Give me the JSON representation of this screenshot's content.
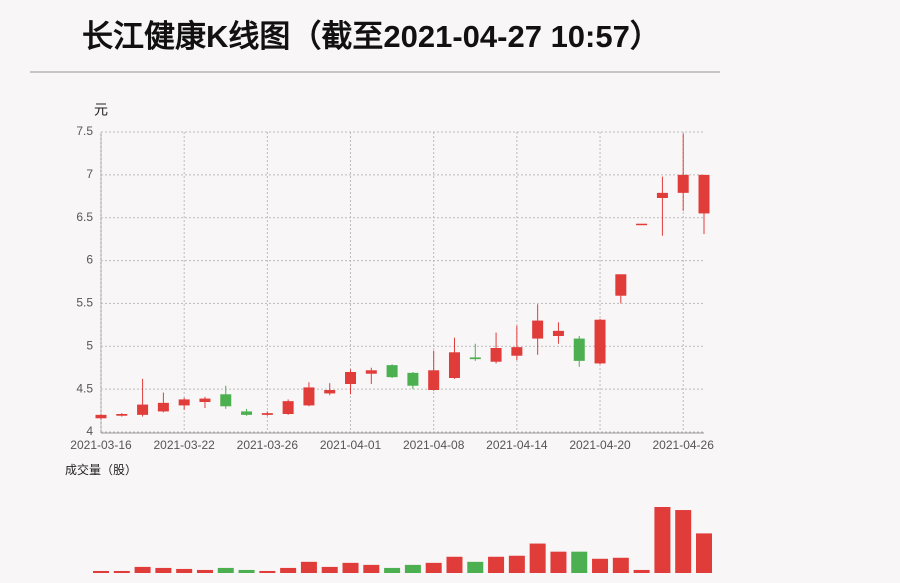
{
  "chart_data": {
    "type": "candlestick",
    "title": "长江健康K线图（截至2021-04-27 10:57）",
    "y_label": "元",
    "volume_label": "成交量（股）",
    "categories": [
      "2021-03-16",
      null,
      null,
      null,
      "2021-03-22",
      null,
      null,
      null,
      "2021-03-26",
      null,
      null,
      null,
      "2021-04-01",
      null,
      null,
      null,
      "2021-04-08",
      null,
      null,
      null,
      "2021-04-14",
      null,
      null,
      null,
      "2021-04-20",
      null,
      null,
      null,
      "2021-04-26",
      null
    ],
    "open": [
      4.16,
      4.19,
      4.2,
      4.24,
      4.31,
      4.35,
      4.44,
      4.24,
      4.2,
      4.21,
      4.31,
      4.45,
      4.56,
      4.68,
      4.78,
      4.69,
      4.49,
      4.63,
      4.87,
      4.82,
      4.89,
      5.09,
      5.12,
      5.09,
      4.8,
      5.59,
      6.43,
      6.73,
      6.79,
      6.55
    ],
    "high": [
      4.21,
      4.22,
      4.62,
      4.46,
      4.4,
      4.41,
      4.54,
      4.27,
      4.24,
      4.38,
      4.58,
      4.57,
      4.73,
      4.75,
      4.79,
      4.7,
      4.95,
      5.1,
      5.03,
      5.16,
      5.24,
      5.49,
      5.28,
      5.12,
      5.32,
      5.84,
      6.43,
      6.98,
      7.48,
      7.0
    ],
    "low": [
      4.15,
      4.18,
      4.18,
      4.23,
      4.26,
      4.28,
      4.27,
      4.19,
      4.19,
      4.2,
      4.3,
      4.43,
      4.44,
      4.56,
      4.63,
      4.5,
      4.48,
      4.62,
      4.83,
      4.8,
      4.84,
      4.9,
      5.03,
      4.76,
      4.79,
      5.5,
      6.43,
      6.29,
      6.58,
      6.31
    ],
    "close": [
      4.2,
      4.21,
      4.32,
      4.34,
      4.38,
      4.39,
      4.3,
      4.2,
      4.22,
      4.36,
      4.52,
      4.49,
      4.7,
      4.72,
      4.64,
      4.54,
      4.72,
      4.93,
      4.85,
      4.98,
      4.99,
      5.3,
      5.18,
      4.83,
      5.31,
      5.84,
      6.43,
      6.79,
      7.0,
      7.0
    ],
    "volume": [
      2,
      2,
      6,
      5,
      4,
      3,
      5,
      3,
      2,
      5,
      11,
      6,
      10,
      8,
      5,
      8,
      10,
      16,
      11,
      16,
      17,
      29,
      21,
      21,
      14,
      15,
      3,
      65,
      62,
      39
    ],
    "ylim": [
      4,
      7.5
    ],
    "yticks": [
      4,
      4.5,
      5,
      5.5,
      6,
      6.5,
      7,
      7.5
    ],
    "grid": true,
    "up_color": "#e03c3a",
    "down_color": "#4caf50"
  }
}
